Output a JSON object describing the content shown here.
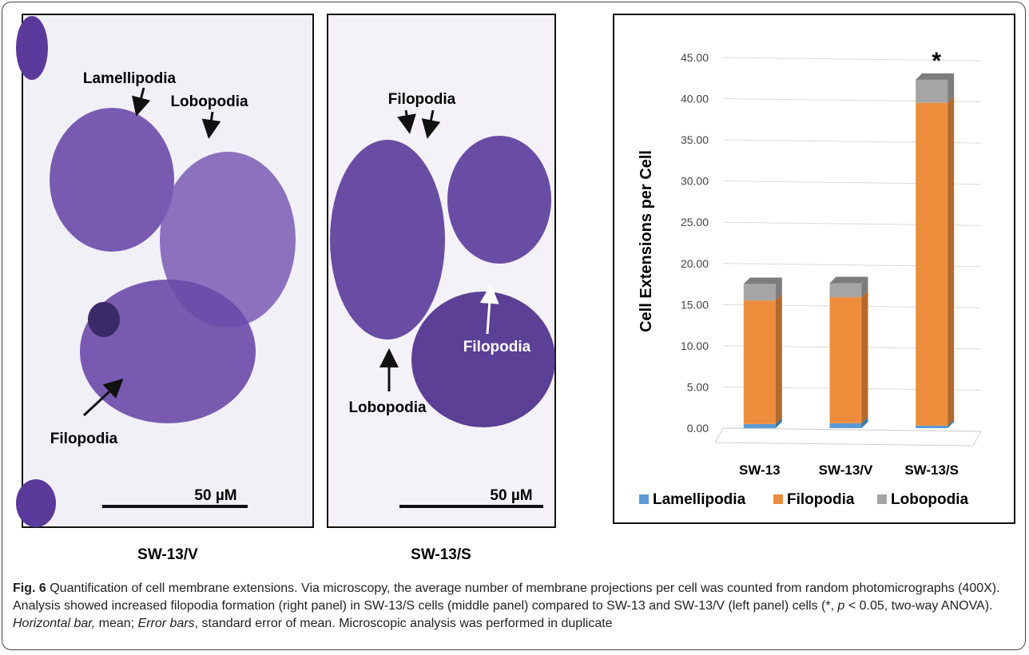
{
  "panels": [
    {
      "label": "SW-13/V",
      "annotations": [
        "Lamellipodia",
        "Lobopodia",
        "Filopodia"
      ],
      "scale_bar": "50 µM"
    },
    {
      "label": "SW-13/S",
      "annotations": [
        "Filopodia",
        "Filopodia",
        "Lobopodia"
      ],
      "scale_bar": "50 µM"
    }
  ],
  "chart_data": {
    "type": "bar",
    "stacked": true,
    "ylabel": "Cell Extensions per Cell",
    "categories": [
      "SW-13",
      "SW-13/V",
      "SW-13/S"
    ],
    "series": [
      {
        "name": "Lamellipodia",
        "color": "#5b9bd5",
        "values": [
          0.5,
          0.6,
          0.3
        ]
      },
      {
        "name": "Filopodia",
        "color": "#ed8d3c",
        "values": [
          15.0,
          15.3,
          39.2
        ]
      },
      {
        "name": "Lobopodia",
        "color": "#a5a5a5",
        "values": [
          2.0,
          1.7,
          2.8
        ]
      }
    ],
    "ylim": [
      0,
      45
    ],
    "yticks": [
      {
        "value": 0,
        "label": "0.00"
      },
      {
        "value": 5,
        "label": "5.00"
      },
      {
        "value": 10,
        "label": "10.00"
      },
      {
        "value": 15,
        "label": "15.00"
      },
      {
        "value": 20,
        "label": "20.00"
      },
      {
        "value": 25,
        "label": "25.00"
      },
      {
        "value": 30,
        "label": "30.00"
      },
      {
        "value": 35,
        "label": "35.00"
      },
      {
        "value": 40,
        "label": "40.00"
      },
      {
        "value": 45,
        "label": "45.00"
      }
    ],
    "grid": true,
    "annotation": {
      "text": "*",
      "category": "SW-13/S"
    }
  },
  "caption": {
    "parts": [
      "Fig. 6",
      " Quantification of cell membrane extensions. Via microscopy, the average number of membrane projections per cell was counted from random photomicrographs (400X). Analysis showed increased filopodia formation (right panel) in SW-13/S cells (middle panel) compared to SW-13 and SW-13/V (left panel) cells (*, ",
      "p",
      " < 0.05, two-way ANOVA). ",
      "Horizontal bar,",
      " mean; ",
      "Error bars",
      ", standard error of mean. Microscopic analysis was performed in duplicate"
    ]
  }
}
